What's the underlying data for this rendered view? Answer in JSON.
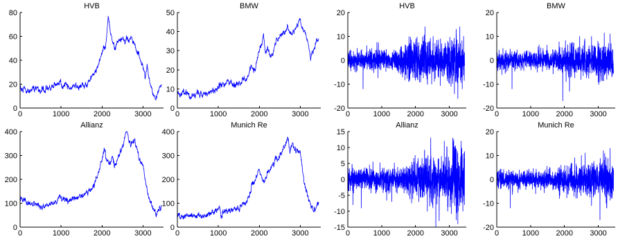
{
  "series_color": "#0000ff",
  "chart_data": [
    {
      "type": "line",
      "title": "HVB",
      "xlim": [
        0,
        3500
      ],
      "ylim": [
        0,
        80
      ],
      "xticks": [
        0,
        1000,
        2000,
        3000
      ],
      "yticks": [
        0,
        20,
        40,
        60,
        80
      ],
      "points": [
        [
          0,
          17
        ],
        [
          100,
          16
        ],
        [
          200,
          14
        ],
        [
          300,
          15
        ],
        [
          400,
          16
        ],
        [
          500,
          15
        ],
        [
          600,
          16
        ],
        [
          700,
          17
        ],
        [
          800,
          18
        ],
        [
          900,
          20
        ],
        [
          950,
          22
        ],
        [
          1000,
          20
        ],
        [
          1100,
          18
        ],
        [
          1200,
          17
        ],
        [
          1300,
          18
        ],
        [
          1400,
          17
        ],
        [
          1500,
          18
        ],
        [
          1600,
          19
        ],
        [
          1700,
          22
        ],
        [
          1800,
          28
        ],
        [
          1900,
          35
        ],
        [
          2000,
          45
        ],
        [
          2100,
          55
        ],
        [
          2150,
          78
        ],
        [
          2200,
          65
        ],
        [
          2300,
          48
        ],
        [
          2400,
          56
        ],
        [
          2500,
          58
        ],
        [
          2600,
          56
        ],
        [
          2700,
          58
        ],
        [
          2800,
          52
        ],
        [
          2900,
          45
        ],
        [
          3000,
          33
        ],
        [
          3050,
          27
        ],
        [
          3100,
          33
        ],
        [
          3150,
          24
        ],
        [
          3200,
          17
        ],
        [
          3300,
          8
        ],
        [
          3350,
          10
        ],
        [
          3400,
          18
        ],
        [
          3450,
          19
        ]
      ]
    },
    {
      "type": "line",
      "title": "BMW",
      "xlim": [
        0,
        3500
      ],
      "ylim": [
        0,
        50
      ],
      "xticks": [
        0,
        1000,
        2000,
        3000
      ],
      "yticks": [
        0,
        10,
        20,
        30,
        40,
        50
      ],
      "points": [
        [
          0,
          8
        ],
        [
          100,
          7
        ],
        [
          200,
          8
        ],
        [
          300,
          6
        ],
        [
          400,
          7
        ],
        [
          500,
          8
        ],
        [
          600,
          7
        ],
        [
          700,
          8
        ],
        [
          800,
          8
        ],
        [
          900,
          9
        ],
        [
          1000,
          11
        ],
        [
          1100,
          12
        ],
        [
          1200,
          13
        ],
        [
          1300,
          12
        ],
        [
          1400,
          12
        ],
        [
          1500,
          13
        ],
        [
          1600,
          14
        ],
        [
          1700,
          16
        ],
        [
          1800,
          22
        ],
        [
          1900,
          20
        ],
        [
          2000,
          30
        ],
        [
          2100,
          37
        ],
        [
          2150,
          28
        ],
        [
          2200,
          32
        ],
        [
          2300,
          27
        ],
        [
          2400,
          35
        ],
        [
          2500,
          38
        ],
        [
          2600,
          40
        ],
        [
          2700,
          42
        ],
        [
          2800,
          38
        ],
        [
          2900,
          42
        ],
        [
          3000,
          47
        ],
        [
          3050,
          40
        ],
        [
          3100,
          42
        ],
        [
          3200,
          33
        ],
        [
          3250,
          25
        ],
        [
          3300,
          30
        ],
        [
          3400,
          34
        ],
        [
          3450,
          36
        ]
      ]
    },
    {
      "type": "line",
      "title": "HVB",
      "xlim": [
        0,
        3500
      ],
      "ylim": [
        -20,
        20
      ],
      "xticks": [
        0,
        1000,
        2000,
        3000
      ],
      "yticks": [
        -20,
        -10,
        0,
        10,
        20
      ],
      "volatility": [
        [
          0,
          2
        ],
        [
          500,
          2
        ],
        [
          800,
          3
        ],
        [
          1200,
          2
        ],
        [
          1600,
          3
        ],
        [
          1900,
          5
        ],
        [
          2200,
          5
        ],
        [
          2500,
          4
        ],
        [
          2800,
          4
        ],
        [
          3000,
          5
        ],
        [
          3200,
          6
        ],
        [
          3350,
          5
        ],
        [
          3450,
          4
        ]
      ],
      "spikes": [
        [
          250,
          -5
        ],
        [
          450,
          -12
        ],
        [
          1800,
          -9
        ],
        [
          2280,
          14
        ],
        [
          2350,
          -8
        ],
        [
          2480,
          -10
        ],
        [
          2520,
          10
        ],
        [
          2950,
          8
        ],
        [
          3050,
          -11
        ],
        [
          3150,
          -14
        ],
        [
          3200,
          13
        ],
        [
          3250,
          -16
        ],
        [
          3310,
          14
        ],
        [
          3380,
          -12
        ],
        [
          3420,
          10
        ]
      ]
    },
    {
      "type": "line",
      "title": "BMW",
      "xlim": [
        0,
        3500
      ],
      "ylim": [
        -20,
        20
      ],
      "xticks": [
        0,
        1000,
        2000,
        3000
      ],
      "yticks": [
        -20,
        -10,
        0,
        10,
        20
      ],
      "volatility": [
        [
          0,
          2
        ],
        [
          500,
          2
        ],
        [
          800,
          2
        ],
        [
          1200,
          2
        ],
        [
          1600,
          2
        ],
        [
          1900,
          3
        ],
        [
          2200,
          4
        ],
        [
          2500,
          3
        ],
        [
          2800,
          4
        ],
        [
          3000,
          4
        ],
        [
          3200,
          4
        ],
        [
          3450,
          4
        ]
      ],
      "spikes": [
        [
          150,
          -6
        ],
        [
          450,
          -12
        ],
        [
          1200,
          -5
        ],
        [
          1950,
          -17
        ],
        [
          2050,
          -9
        ],
        [
          2150,
          -13
        ],
        [
          2450,
          10
        ],
        [
          2600,
          9
        ],
        [
          2800,
          10
        ],
        [
          3050,
          -9
        ],
        [
          3250,
          -8
        ],
        [
          3350,
          11
        ],
        [
          3400,
          -7
        ]
      ]
    },
    {
      "type": "line",
      "title": "Allianz",
      "xlim": [
        0,
        3500
      ],
      "ylim": [
        0,
        400
      ],
      "xticks": [
        0,
        1000,
        2000,
        3000
      ],
      "yticks": [
        0,
        100,
        200,
        300,
        400
      ],
      "points": [
        [
          0,
          120
        ],
        [
          100,
          110
        ],
        [
          200,
          100
        ],
        [
          300,
          95
        ],
        [
          400,
          100
        ],
        [
          500,
          95
        ],
        [
          600,
          90
        ],
        [
          700,
          100
        ],
        [
          800,
          90
        ],
        [
          900,
          110
        ],
        [
          950,
          130
        ],
        [
          1000,
          120
        ],
        [
          1100,
          115
        ],
        [
          1200,
          110
        ],
        [
          1300,
          115
        ],
        [
          1400,
          120
        ],
        [
          1500,
          125
        ],
        [
          1600,
          140
        ],
        [
          1700,
          150
        ],
        [
          1800,
          180
        ],
        [
          1900,
          230
        ],
        [
          2000,
          280
        ],
        [
          2050,
          320
        ],
        [
          2100,
          290
        ],
        [
          2200,
          260
        ],
        [
          2250,
          300
        ],
        [
          2300,
          250
        ],
        [
          2400,
          300
        ],
        [
          2500,
          330
        ],
        [
          2600,
          400
        ],
        [
          2700,
          340
        ],
        [
          2800,
          360
        ],
        [
          2900,
          290
        ],
        [
          3000,
          260
        ],
        [
          3100,
          150
        ],
        [
          3200,
          100
        ],
        [
          3300,
          60
        ],
        [
          3350,
          55
        ],
        [
          3400,
          80
        ],
        [
          3450,
          90
        ]
      ]
    },
    {
      "type": "line",
      "title": "Munich Re",
      "xlim": [
        0,
        3500
      ],
      "ylim": [
        0,
        400
      ],
      "xticks": [
        0,
        1000,
        2000,
        3000
      ],
      "yticks": [
        0,
        100,
        200,
        300,
        400
      ],
      "points": [
        [
          0,
          50
        ],
        [
          100,
          45
        ],
        [
          200,
          50
        ],
        [
          300,
          45
        ],
        [
          400,
          55
        ],
        [
          500,
          50
        ],
        [
          600,
          45
        ],
        [
          700,
          50
        ],
        [
          800,
          55
        ],
        [
          900,
          60
        ],
        [
          1000,
          70
        ],
        [
          1100,
          65
        ],
        [
          1200,
          60
        ],
        [
          1300,
          70
        ],
        [
          1400,
          75
        ],
        [
          1500,
          80
        ],
        [
          1600,
          90
        ],
        [
          1700,
          110
        ],
        [
          1800,
          160
        ],
        [
          1900,
          200
        ],
        [
          2000,
          240
        ],
        [
          2100,
          190
        ],
        [
          2200,
          230
        ],
        [
          2300,
          260
        ],
        [
          2400,
          280
        ],
        [
          2500,
          300
        ],
        [
          2600,
          330
        ],
        [
          2700,
          370
        ],
        [
          2750,
          310
        ],
        [
          2800,
          350
        ],
        [
          2900,
          320
        ],
        [
          3000,
          300
        ],
        [
          3100,
          180
        ],
        [
          3200,
          120
        ],
        [
          3300,
          70
        ],
        [
          3350,
          80
        ],
        [
          3400,
          95
        ],
        [
          3450,
          100
        ]
      ]
    },
    {
      "type": "line",
      "title": "Allianz",
      "xlim": [
        0,
        3500
      ],
      "ylim": [
        -15,
        15
      ],
      "xticks": [
        0,
        1000,
        2000,
        3000
      ],
      "yticks": [
        -15,
        -10,
        -5,
        0,
        5,
        10,
        15
      ],
      "volatility": [
        [
          0,
          2
        ],
        [
          500,
          2
        ],
        [
          800,
          2
        ],
        [
          1200,
          2
        ],
        [
          1600,
          2
        ],
        [
          1900,
          3
        ],
        [
          2200,
          4
        ],
        [
          2500,
          4
        ],
        [
          2800,
          4
        ],
        [
          3000,
          5
        ],
        [
          3200,
          6
        ],
        [
          3350,
          6
        ],
        [
          3450,
          5
        ]
      ],
      "spikes": [
        [
          150,
          -8
        ],
        [
          400,
          -9
        ],
        [
          1300,
          -7
        ],
        [
          1800,
          -5
        ],
        [
          2100,
          -7
        ],
        [
          2350,
          -10
        ],
        [
          2450,
          13
        ],
        [
          2500,
          -8
        ],
        [
          2600,
          -15
        ],
        [
          2700,
          -13
        ],
        [
          2850,
          12
        ],
        [
          2950,
          -10
        ],
        [
          3100,
          13
        ],
        [
          3250,
          -14
        ],
        [
          3350,
          12
        ],
        [
          3400,
          -10
        ]
      ]
    },
    {
      "type": "line",
      "title": "Munich Re",
      "xlim": [
        0,
        3500
      ],
      "ylim": [
        -20,
        20
      ],
      "xticks": [
        0,
        1000,
        2000,
        3000
      ],
      "yticks": [
        -20,
        -10,
        0,
        10,
        20
      ],
      "volatility": [
        [
          0,
          2
        ],
        [
          500,
          2
        ],
        [
          800,
          2
        ],
        [
          1200,
          2
        ],
        [
          1600,
          2
        ],
        [
          1900,
          3
        ],
        [
          2200,
          3
        ],
        [
          2500,
          4
        ],
        [
          2800,
          4
        ],
        [
          3000,
          4
        ],
        [
          3200,
          5
        ],
        [
          3350,
          5
        ],
        [
          3450,
          5
        ]
      ],
      "spikes": [
        [
          400,
          -12
        ],
        [
          1150,
          -6
        ],
        [
          1850,
          -8
        ],
        [
          2300,
          9
        ],
        [
          2500,
          10
        ],
        [
          2800,
          -11
        ],
        [
          3050,
          -17
        ],
        [
          3150,
          12
        ],
        [
          3250,
          -12
        ],
        [
          3350,
          13
        ],
        [
          3400,
          -8
        ]
      ]
    }
  ]
}
